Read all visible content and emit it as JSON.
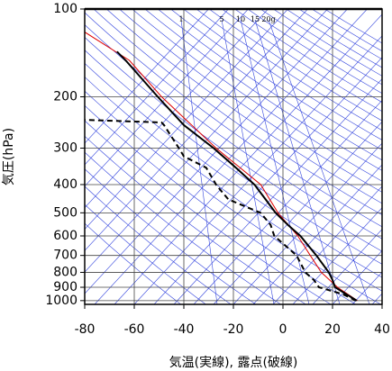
{
  "chart_data": {
    "type": "line",
    "x_label": "気温(実線), 露点(破線)",
    "y_label": "気圧(hPa)",
    "xlim": [
      -80,
      40
    ],
    "xticks": [
      -80,
      -60,
      -40,
      -20,
      0,
      20,
      40
    ],
    "ylim": [
      1030,
      100
    ],
    "yticks": [
      100,
      200,
      300,
      400,
      500,
      600,
      700,
      800,
      900,
      1000
    ],
    "y_log": true,
    "grid": true,
    "annotations": [
      "1",
      "5",
      "10",
      "15",
      "20g"
    ],
    "series": [
      {
        "color": "#000000",
        "style": "solid",
        "x": [
          29.8,
          25.5,
          21,
          20,
          18.5,
          13.5,
          7,
          2,
          -3,
          -7,
          -11.5,
          -19,
          -28,
          -40,
          -50.5,
          -63.5,
          -67
        ],
        "y": [
          1000,
          950,
          900,
          850,
          800,
          700,
          600,
          550,
          500,
          450,
          400,
          350,
          300,
          250,
          200,
          150,
          140
        ]
      },
      {
        "color": "#000000",
        "style": "dashed",
        "x": [
          29.5,
          24,
          14.5,
          12.5,
          9,
          5.5,
          -3.5,
          -5,
          -9,
          -22,
          -25,
          -27,
          -31,
          -40,
          -42,
          -48,
          -49,
          -80
        ],
        "y": [
          1000,
          950,
          900,
          850,
          800,
          700,
          600,
          550,
          500,
          450,
          420,
          400,
          350,
          320,
          300,
          250,
          245,
          240
        ]
      },
      {
        "color": "#e00000",
        "style": "solid",
        "x": [
          30,
          22,
          15.5,
          11,
          6,
          -2,
          -9,
          -27,
          -49,
          -62,
          -80
        ],
        "y": [
          1000,
          900,
          800,
          700,
          600,
          500,
          400,
          300,
          200,
          150,
          120
        ]
      }
    ]
  }
}
